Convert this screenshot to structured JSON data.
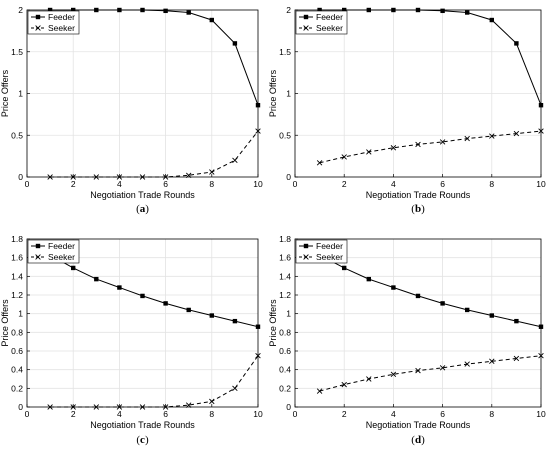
{
  "chart_data": [
    {
      "type": "line",
      "caption": "(a)",
      "xlabel": "Negotiation Trade Rounds",
      "ylabel": "Price Offers",
      "xlim": [
        0,
        10
      ],
      "ylim": [
        0,
        2
      ],
      "xticks": [
        0,
        2,
        4,
        6,
        8,
        10
      ],
      "yticks": [
        0,
        0.5,
        1,
        1.5,
        2
      ],
      "grid": true,
      "legend_position": "top-left",
      "x": [
        1,
        2,
        3,
        4,
        5,
        6,
        7,
        8,
        9,
        10
      ],
      "series": [
        {
          "name": "Feeder",
          "marker": "square",
          "style": "solid",
          "values": [
            2.0,
            2.0,
            2.0,
            2.0,
            2.0,
            1.99,
            1.97,
            1.88,
            1.6,
            0.86
          ]
        },
        {
          "name": "Seeker",
          "marker": "x",
          "style": "dashed",
          "values": [
            0.0,
            0.0,
            0.0,
            0.0,
            0.0,
            0.0,
            0.02,
            0.06,
            0.2,
            0.55
          ]
        }
      ]
    },
    {
      "type": "line",
      "caption": "(b)",
      "xlabel": "Negotiation Trade Rounds",
      "ylabel": "Price Offers",
      "xlim": [
        0,
        10
      ],
      "ylim": [
        0,
        2
      ],
      "xticks": [
        0,
        2,
        4,
        6,
        8,
        10
      ],
      "yticks": [
        0,
        0.5,
        1,
        1.5,
        2
      ],
      "grid": true,
      "legend_position": "top-left",
      "x": [
        1,
        2,
        3,
        4,
        5,
        6,
        7,
        8,
        9,
        10
      ],
      "series": [
        {
          "name": "Feeder",
          "marker": "square",
          "style": "solid",
          "values": [
            2.0,
            2.0,
            2.0,
            2.0,
            2.0,
            1.99,
            1.97,
            1.88,
            1.6,
            0.86
          ]
        },
        {
          "name": "Seeker",
          "marker": "x",
          "style": "dashed",
          "values": [
            0.17,
            0.24,
            0.3,
            0.35,
            0.39,
            0.42,
            0.46,
            0.49,
            0.52,
            0.55
          ]
        }
      ]
    },
    {
      "type": "line",
      "caption": "(c)",
      "xlabel": "Negotiation Trade Rounds",
      "ylabel": "Price Offers",
      "xlim": [
        0,
        10
      ],
      "ylim": [
        0,
        1.8
      ],
      "xticks": [
        0,
        2,
        4,
        6,
        8,
        10
      ],
      "yticks": [
        0,
        0.2,
        0.4,
        0.6,
        0.8,
        1,
        1.2,
        1.4,
        1.6,
        1.8
      ],
      "grid": true,
      "legend_position": "top-left",
      "x": [
        1,
        2,
        3,
        4,
        5,
        6,
        7,
        8,
        9,
        10
      ],
      "series": [
        {
          "name": "Feeder",
          "marker": "square",
          "style": "solid",
          "values": [
            1.63,
            1.49,
            1.37,
            1.28,
            1.19,
            1.11,
            1.04,
            0.98,
            0.92,
            0.86
          ]
        },
        {
          "name": "Seeker",
          "marker": "x",
          "style": "dashed",
          "values": [
            0.0,
            0.0,
            0.0,
            0.0,
            0.0,
            0.0,
            0.02,
            0.06,
            0.2,
            0.55
          ]
        }
      ]
    },
    {
      "type": "line",
      "caption": "(d)",
      "xlabel": "Negotiation Trade Rounds",
      "ylabel": "Price Offers",
      "xlim": [
        0,
        10
      ],
      "ylim": [
        0,
        1.8
      ],
      "xticks": [
        0,
        2,
        4,
        6,
        8,
        10
      ],
      "yticks": [
        0,
        0.2,
        0.4,
        0.6,
        0.8,
        1,
        1.2,
        1.4,
        1.6,
        1.8
      ],
      "grid": true,
      "legend_position": "top-left",
      "x": [
        1,
        2,
        3,
        4,
        5,
        6,
        7,
        8,
        9,
        10
      ],
      "series": [
        {
          "name": "Feeder",
          "marker": "square",
          "style": "solid",
          "values": [
            1.63,
            1.49,
            1.37,
            1.28,
            1.19,
            1.11,
            1.04,
            0.98,
            0.92,
            0.86
          ]
        },
        {
          "name": "Seeker",
          "marker": "x",
          "style": "dashed",
          "values": [
            0.17,
            0.24,
            0.3,
            0.35,
            0.39,
            0.42,
            0.46,
            0.49,
            0.52,
            0.55
          ]
        }
      ]
    }
  ]
}
